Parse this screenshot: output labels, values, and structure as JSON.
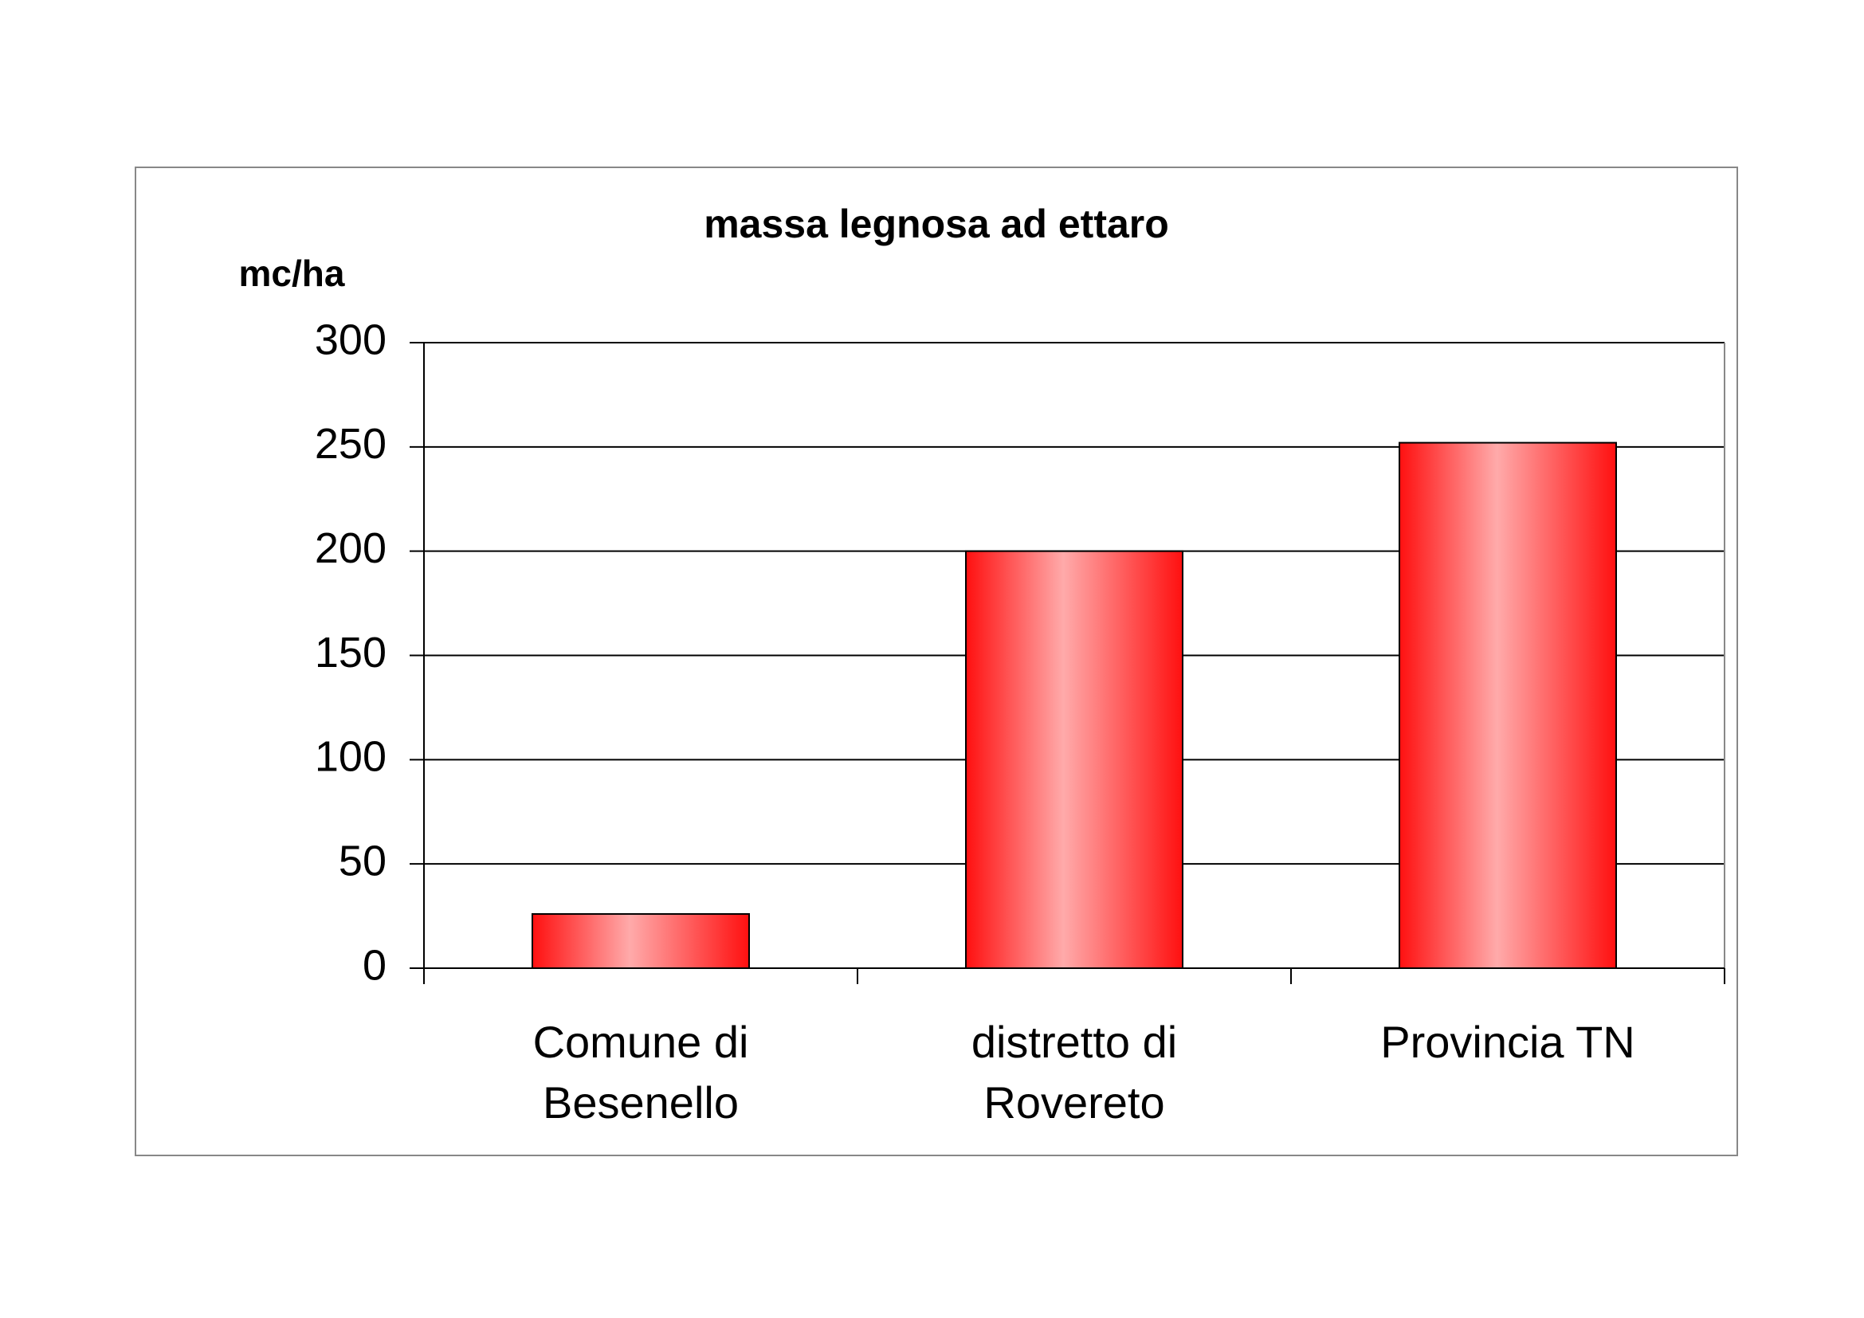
{
  "chart_data": {
    "type": "bar",
    "title": "massa legnosa ad ettaro",
    "y_label": "mc/ha",
    "categories": [
      "Comune di Besenello",
      "distretto di Rovereto",
      "Provincia TN"
    ],
    "values": [
      26,
      200,
      252
    ],
    "color": "#ff1010",
    "ylim": [
      0,
      300
    ],
    "yticks": [
      0,
      50,
      100,
      150,
      200,
      250,
      300
    ],
    "grid": true
  }
}
